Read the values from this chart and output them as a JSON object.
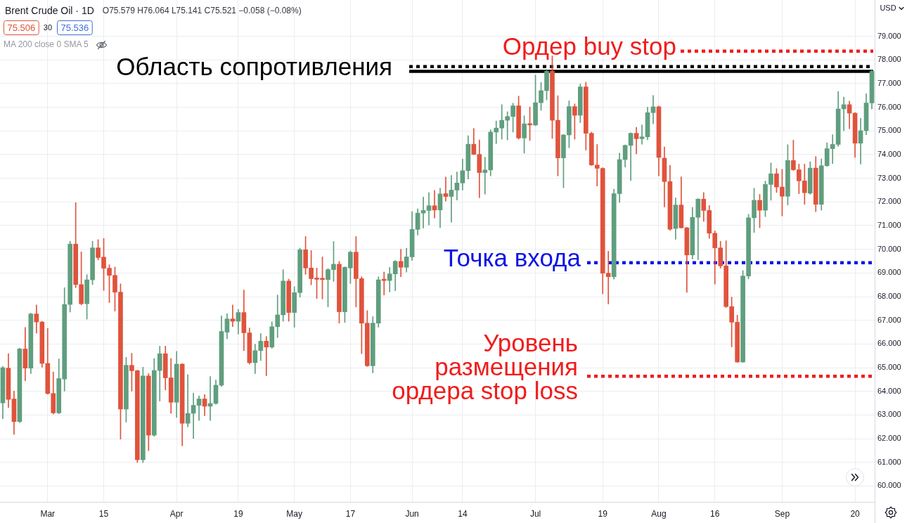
{
  "chart_data": {
    "type": "candlestick",
    "title": "Brent Crude Oil · 1D",
    "subtitle": "O75.579 H76.064 L75.141 C75.521 −0.058 (−0.08%)",
    "ylabel": "USD",
    "annotations": [
      "75.506",
      "30",
      "75.536",
      "MA 200 close 0 SMA 5"
    ],
    "categories": [
      null,
      null,
      null,
      null,
      null,
      null,
      null,
      null,
      "Mar",
      null,
      null,
      null,
      null,
      null,
      null,
      null,
      null,
      null,
      "15",
      null,
      null,
      null,
      null,
      null,
      null,
      null,
      null,
      null,
      null,
      null,
      null,
      "Apr",
      null,
      null,
      null,
      null,
      null,
      null,
      null,
      null,
      null,
      null,
      "19",
      null,
      null,
      null,
      null,
      null,
      null,
      null,
      null,
      null,
      "May",
      null,
      null,
      null,
      null,
      null,
      null,
      null,
      null,
      null,
      "17",
      null,
      null,
      null,
      null,
      null,
      null,
      null,
      null,
      null,
      null,
      "Jun",
      null,
      null,
      null,
      null,
      null,
      null,
      null,
      null,
      "14",
      null,
      null,
      null,
      null,
      null,
      null,
      null,
      null,
      null,
      null,
      null,
      null,
      "Jul",
      null,
      null,
      null,
      null,
      null,
      null,
      null,
      null,
      null,
      null,
      null,
      "19",
      null,
      null,
      null,
      null,
      null,
      null,
      null,
      null,
      null,
      "Aug",
      null,
      null,
      null,
      null,
      null,
      null,
      null,
      null,
      null,
      "16",
      null,
      null,
      null,
      null,
      null,
      null,
      null,
      null,
      null,
      null,
      null,
      "Sep",
      null,
      null,
      null,
      null,
      null,
      null,
      null,
      null,
      null,
      null,
      null,
      null,
      "20",
      null,
      null,
      null
    ],
    "ohlc": [
      [
        63.51,
        65.05,
        62.84,
        65.0
      ],
      [
        64.98,
        65.59,
        63.32,
        63.66
      ],
      [
        63.68,
        64.01,
        62.18,
        62.72
      ],
      [
        62.72,
        65.82,
        62.68,
        65.79
      ],
      [
        65.79,
        66.7,
        64.45,
        64.98
      ],
      [
        64.98,
        67.3,
        64.75,
        67.27
      ],
      [
        67.27,
        67.65,
        66.46,
        66.93
      ],
      [
        66.93,
        66.96,
        65.02,
        65.18
      ],
      [
        65.18,
        66.66,
        63.88,
        63.91
      ],
      [
        63.91,
        64.82,
        63.04,
        63.09
      ],
      [
        63.09,
        65.37,
        63.05,
        64.54
      ],
      [
        64.52,
        68.38,
        64.01,
        67.67
      ],
      [
        67.67,
        70.34,
        67.35,
        70.22
      ],
      [
        70.22,
        71.97,
        68.38,
        68.51
      ],
      [
        68.51,
        69.89,
        67.65,
        67.7
      ],
      [
        67.7,
        68.93,
        67.05,
        68.71
      ],
      [
        68.71,
        70.34,
        68.51,
        70.06
      ],
      [
        70.06,
        70.41,
        69.55,
        69.65
      ],
      [
        69.67,
        70.46,
        68.26,
        69.2
      ],
      [
        69.2,
        69.35,
        67.75,
        68.9
      ],
      [
        68.9,
        69.25,
        67.39,
        68.19
      ],
      [
        68.19,
        68.54,
        61.98,
        63.25
      ],
      [
        63.25,
        65.44,
        62.7,
        65.1
      ],
      [
        65.1,
        65.61,
        64.01,
        64.87
      ],
      [
        64.87,
        64.9,
        60.99,
        61.11
      ],
      [
        61.11,
        65.02,
        60.99,
        64.65
      ],
      [
        64.65,
        64.75,
        61.49,
        62.15
      ],
      [
        62.15,
        65.39,
        62.1,
        64.88
      ],
      [
        64.88,
        65.91,
        63.59,
        65.59
      ],
      [
        65.59,
        65.91,
        64.06,
        64.57
      ],
      [
        64.57,
        65.39,
        63.07,
        63.54
      ],
      [
        63.54,
        65.69,
        62.9,
        65.15
      ],
      [
        65.15,
        65.18,
        61.7,
        62.65
      ],
      [
        62.65,
        64.7,
        62.5,
        63.07
      ],
      [
        63.07,
        63.93,
        62.01,
        63.41
      ],
      [
        63.41,
        63.81,
        62.77,
        63.68
      ],
      [
        63.68,
        63.86,
        62.97,
        63.37
      ],
      [
        63.37,
        64.63,
        62.77,
        63.49
      ],
      [
        63.49,
        64.48,
        63.45,
        64.26
      ],
      [
        64.26,
        67.19,
        64.2,
        66.53
      ],
      [
        66.5,
        67.28,
        66.22,
        67.06
      ],
      [
        67.06,
        67.65,
        66.73,
        66.96
      ],
      [
        66.96,
        67.46,
        66.42,
        67.33
      ],
      [
        67.33,
        68.28,
        65.72,
        66.47
      ],
      [
        66.47,
        66.68,
        65.15,
        65.21
      ],
      [
        65.21,
        65.99,
        64.75,
        65.72
      ],
      [
        65.72,
        66.44,
        65.3,
        66.12
      ],
      [
        66.12,
        66.32,
        64.66,
        65.87
      ],
      [
        65.87,
        66.94,
        65.82,
        66.73
      ],
      [
        66.73,
        68.07,
        66.27,
        67.23
      ],
      [
        67.23,
        69.14,
        66.96,
        68.66
      ],
      [
        68.66,
        68.74,
        66.96,
        67.33
      ],
      [
        67.33,
        68.42,
        66.71,
        68.17
      ],
      [
        68.17,
        70.05,
        67.98,
        69.98
      ],
      [
        69.98,
        70.54,
        68.94,
        69.21
      ],
      [
        69.21,
        69.95,
        68.5,
        68.76
      ],
      [
        68.76,
        69.21,
        67.92,
        68.73
      ],
      [
        68.74,
        69.68,
        67.9,
        68.72
      ],
      [
        68.72,
        69.19,
        67.57,
        69.14
      ],
      [
        69.14,
        70.33,
        68.64,
        69.37
      ],
      [
        69.37,
        69.49,
        66.88,
        67.36
      ],
      [
        67.36,
        69.26,
        66.91,
        69.24
      ],
      [
        69.21,
        69.93,
        68.56,
        69.88
      ],
      [
        69.88,
        70.54,
        67.57,
        68.76
      ],
      [
        68.76,
        68.84,
        65.59,
        66.88
      ],
      [
        66.88,
        67.41,
        65.05,
        65.08
      ],
      [
        65.08,
        67.16,
        64.78,
        66.88
      ],
      [
        66.88,
        68.84,
        66.71,
        68.71
      ],
      [
        68.71,
        69.04,
        68.07,
        68.68
      ],
      [
        68.68,
        69.24,
        68.2,
        68.96
      ],
      [
        68.96,
        69.53,
        68.25,
        69.49
      ],
      [
        69.49,
        70.0,
        68.84,
        69.24
      ],
      [
        69.24,
        70.05,
        69.04,
        69.68
      ],
      [
        69.68,
        71.59,
        69.53,
        70.84
      ],
      [
        70.84,
        71.71,
        70.6,
        71.53
      ],
      [
        71.53,
        72.21,
        70.9,
        71.64
      ],
      [
        71.64,
        72.39,
        71.02,
        71.84
      ],
      [
        71.84,
        72.49,
        71.32,
        71.66
      ],
      [
        71.66,
        72.58,
        70.92,
        72.34
      ],
      [
        72.35,
        73.05,
        72.03,
        72.23
      ],
      [
        72.23,
        73.12,
        71.14,
        72.5
      ],
      [
        72.5,
        73.27,
        72.08,
        72.8
      ],
      [
        72.8,
        73.81,
        72.5,
        73.32
      ],
      [
        73.32,
        74.8,
        72.97,
        74.44
      ],
      [
        74.44,
        75.1,
        73.99,
        74.01
      ],
      [
        74.01,
        74.62,
        72.18,
        73.24
      ],
      [
        73.24,
        73.89,
        72.33,
        73.35
      ],
      [
        73.35,
        75.05,
        73.1,
        74.95
      ],
      [
        74.95,
        75.42,
        74.46,
        75.12
      ],
      [
        75.12,
        76.11,
        74.65,
        75.45
      ],
      [
        75.45,
        75.81,
        74.62,
        75.61
      ],
      [
        75.61,
        76.17,
        74.95,
        76.06
      ],
      [
        76.06,
        76.47,
        74.65,
        74.7
      ],
      [
        74.7,
        75.64,
        74.06,
        75.3
      ],
      [
        75.3,
        76.01,
        74.6,
        75.25
      ],
      [
        75.25,
        77.36,
        75.22,
        76.19
      ],
      [
        76.19,
        77.05,
        75.87,
        76.7
      ],
      [
        76.7,
        77.55,
        76.31,
        77.52
      ],
      [
        77.52,
        78.17,
        74.68,
        75.45
      ],
      [
        75.45,
        76.49,
        73.1,
        73.86
      ],
      [
        73.86,
        74.85,
        72.6,
        74.83
      ],
      [
        74.83,
        76.27,
        74.29,
        76.03
      ],
      [
        76.03,
        76.14,
        74.65,
        75.66
      ],
      [
        75.66,
        76.98,
        75.35,
        76.86
      ],
      [
        76.86,
        77.06,
        74.19,
        74.9
      ],
      [
        74.9,
        74.95,
        73.54,
        73.56
      ],
      [
        73.56,
        74.43,
        72.67,
        73.42
      ],
      [
        73.42,
        73.45,
        68.12,
        68.99
      ],
      [
        68.99,
        69.92,
        67.69,
        68.84
      ],
      [
        68.84,
        72.54,
        68.74,
        72.35
      ],
      [
        72.35,
        74.06,
        71.98,
        73.79
      ],
      [
        73.79,
        74.41,
        73.47,
        74.39
      ],
      [
        74.39,
        74.92,
        72.9,
        74.9
      ],
      [
        74.9,
        75.15,
        74.03,
        74.67
      ],
      [
        74.67,
        75.25,
        74.44,
        74.75
      ],
      [
        74.75,
        76.01,
        74.62,
        75.77
      ],
      [
        75.77,
        76.5,
        75.3,
        76.02
      ],
      [
        76.02,
        76.05,
        73.1,
        73.88
      ],
      [
        73.85,
        74.32,
        71.79,
        72.86
      ],
      [
        72.86,
        73.55,
        70.8,
        70.85
      ],
      [
        70.88,
        72.17,
        70.42,
        71.87
      ],
      [
        71.87,
        73.06,
        70.89,
        70.91
      ],
      [
        70.91,
        70.93,
        68.18,
        69.76
      ],
      [
        69.76,
        71.77,
        69.59,
        71.35
      ],
      [
        71.35,
        72.14,
        69.56,
        72.12
      ],
      [
        72.12,
        72.4,
        71.18,
        71.64
      ],
      [
        71.64,
        71.85,
        70.46,
        70.68
      ],
      [
        70.68,
        70.78,
        68.53,
        70.06
      ],
      [
        70.06,
        70.34,
        69.2,
        69.3
      ],
      [
        69.3,
        70.36,
        67.54,
        67.58
      ],
      [
        67.58,
        67.98,
        65.88,
        66.92
      ],
      [
        66.92,
        67.22,
        65.22,
        65.24
      ],
      [
        65.24,
        69.1,
        65.22,
        68.87
      ],
      [
        68.87,
        71.48,
        68.75,
        71.33
      ],
      [
        71.33,
        72.58,
        70.71,
        72.07
      ],
      [
        72.07,
        72.32,
        70.91,
        71.65
      ],
      [
        71.65,
        72.88,
        71.38,
        72.74
      ],
      [
        72.74,
        73.65,
        72.07,
        73.19
      ],
      [
        73.19,
        73.41,
        72.4,
        72.63
      ],
      [
        72.63,
        73.38,
        71.41,
        72.24
      ],
      [
        72.24,
        74.42,
        71.87,
        73.75
      ],
      [
        73.75,
        74.61,
        73.33,
        73.36
      ],
      [
        73.36,
        73.6,
        72.35,
        72.89
      ],
      [
        72.89,
        73.6,
        71.9,
        72.39
      ],
      [
        72.37,
        73.7,
        72.32,
        73.43
      ],
      [
        73.43,
        73.92,
        71.59,
        71.9
      ],
      [
        71.9,
        73.82,
        71.65,
        73.53
      ],
      [
        73.53,
        74.5,
        73.5,
        74.25
      ],
      [
        74.25,
        74.84,
        73.62,
        74.43
      ],
      [
        74.43,
        76.67,
        74.35,
        75.93
      ],
      [
        75.93,
        76.43,
        75.01,
        76.11
      ],
      [
        76.11,
        76.26,
        75.09,
        75.75
      ],
      [
        75.75,
        75.78,
        73.88,
        74.48
      ],
      [
        74.48,
        75.53,
        73.6,
        75.01
      ],
      [
        75.01,
        76.57,
        74.84,
        76.18
      ],
      [
        76.18,
        77.55,
        75.93,
        77.52
      ]
    ],
    "colors": [
      "#5f9e7e",
      "#e0533c",
      "#e0533c",
      "#5f9e7e",
      "#e0533c",
      "#5f9e7e",
      "#e0533c",
      "#e0533c",
      "#e0533c",
      "#e0533c",
      "#5f9e7e",
      "#5f9e7e",
      "#5f9e7e",
      "#e0533c",
      "#e0533c",
      "#5f9e7e",
      "#5f9e7e",
      "#e0533c",
      "#e0533c",
      "#e0533c",
      "#e0533c",
      "#e0533c",
      "#5f9e7e",
      "#e0533c",
      "#e0533c",
      "#5f9e7e",
      "#e0533c",
      "#5f9e7e",
      "#5f9e7e",
      "#e0533c",
      "#e0533c",
      "#5f9e7e",
      "#e0533c",
      "#5f9e7e",
      "#5f9e7e",
      "#5f9e7e",
      "#e0533c",
      "#5f9e7e",
      "#5f9e7e",
      "#5f9e7e",
      "#5f9e7e",
      "#e0533c",
      "#5f9e7e",
      "#e0533c",
      "#e0533c",
      "#5f9e7e",
      "#5f9e7e",
      "#e0533c",
      "#5f9e7e",
      "#5f9e7e",
      "#5f9e7e",
      "#e0533c",
      "#5f9e7e",
      "#5f9e7e",
      "#e0533c",
      "#e0533c",
      "#e0533c",
      "#e0533c",
      "#5f9e7e",
      "#5f9e7e",
      "#e0533c",
      "#5f9e7e",
      "#5f9e7e",
      "#e0533c",
      "#e0533c",
      "#e0533c",
      "#5f9e7e",
      "#5f9e7e",
      "#e0533c",
      "#5f9e7e",
      "#5f9e7e",
      "#e0533c",
      "#5f9e7e",
      "#5f9e7e",
      "#5f9e7e",
      "#5f9e7e",
      "#5f9e7e",
      "#e0533c",
      "#5f9e7e",
      "#e0533c",
      "#5f9e7e",
      "#5f9e7e",
      "#5f9e7e",
      "#5f9e7e",
      "#e0533c",
      "#e0533c",
      "#5f9e7e",
      "#5f9e7e",
      "#5f9e7e",
      "#5f9e7e",
      "#5f9e7e",
      "#5f9e7e",
      "#e0533c",
      "#5f9e7e",
      "#e0533c",
      "#5f9e7e",
      "#5f9e7e",
      "#5f9e7e",
      "#e0533c",
      "#e0533c",
      "#5f9e7e",
      "#5f9e7e",
      "#e0533c",
      "#5f9e7e",
      "#e0533c",
      "#e0533c",
      "#e0533c",
      "#e0533c",
      "#e0533c",
      "#5f9e7e",
      "#5f9e7e",
      "#5f9e7e",
      "#5f9e7e",
      "#e0533c",
      "#5f9e7e",
      "#5f9e7e",
      "#5f9e7e",
      "#e0533c",
      "#e0533c",
      "#e0533c",
      "#5f9e7e",
      "#e0533c",
      "#e0533c",
      "#5f9e7e",
      "#5f9e7e",
      "#e0533c",
      "#e0533c",
      "#e0533c",
      "#e0533c",
      "#e0533c",
      "#e0533c",
      "#e0533c",
      "#5f9e7e",
      "#5f9e7e",
      "#5f9e7e",
      "#e0533c",
      "#5f9e7e",
      "#5f9e7e",
      "#e0533c",
      "#e0533c",
      "#5f9e7e",
      "#e0533c",
      "#e0533c",
      "#e0533c",
      "#5f9e7e",
      "#e0533c",
      "#5f9e7e",
      "#5f9e7e",
      "#5f9e7e",
      "#5f9e7e",
      "#5f9e7e",
      "#e0533c",
      "#e0533c",
      "#5f9e7e",
      "#5f9e7e",
      "#5f9e7e"
    ],
    "ylim": [
      59.33,
      80.53
    ],
    "yticks": [
      {
        "value": 60,
        "label": "60.000"
      },
      {
        "value": 61,
        "label": "61.000"
      },
      {
        "value": 62,
        "label": "62.000"
      },
      {
        "value": 63,
        "label": "63.000"
      },
      {
        "value": 64,
        "label": "64.000"
      },
      {
        "value": 65,
        "label": "65.000"
      },
      {
        "value": 66,
        "label": "66.000"
      },
      {
        "value": 67,
        "label": "67.000"
      },
      {
        "value": 68,
        "label": "68.000"
      },
      {
        "value": 69,
        "label": "69.000"
      },
      {
        "value": 70,
        "label": "70.000"
      },
      {
        "value": 71,
        "label": "71.000"
      },
      {
        "value": 72,
        "label": "72.000"
      },
      {
        "value": 73,
        "label": "73.000"
      },
      {
        "value": 74,
        "label": "74.000"
      },
      {
        "value": 75,
        "label": "75.000"
      },
      {
        "value": 76,
        "label": "76.000"
      },
      {
        "value": 77,
        "label": "77.000"
      },
      {
        "value": 78,
        "label": "78.000"
      },
      {
        "value": 79,
        "label": "79.000"
      }
    ],
    "grid": true,
    "ref_lines": [
      {
        "axis": "y",
        "value": 77.52,
        "label": "Область сопротивления",
        "color": "#000000",
        "line_style": "solid"
      },
      {
        "axis": "y",
        "value": 77.72,
        "color": "#000000",
        "line_style": "dotted"
      },
      {
        "axis": "y",
        "value": 78.37,
        "label": "Ордер buy stop",
        "color": "#f01c1c",
        "line_style": "dotted"
      },
      {
        "axis": "y",
        "value": 69.43,
        "label": "Точка входа",
        "color": "#0a14e6",
        "line_style": "dotted"
      },
      {
        "axis": "y",
        "value": 64.64,
        "label": "Уровень размещения ордера stop loss",
        "color": "#f01c1c",
        "line_style": "dotted"
      }
    ]
  }
}
